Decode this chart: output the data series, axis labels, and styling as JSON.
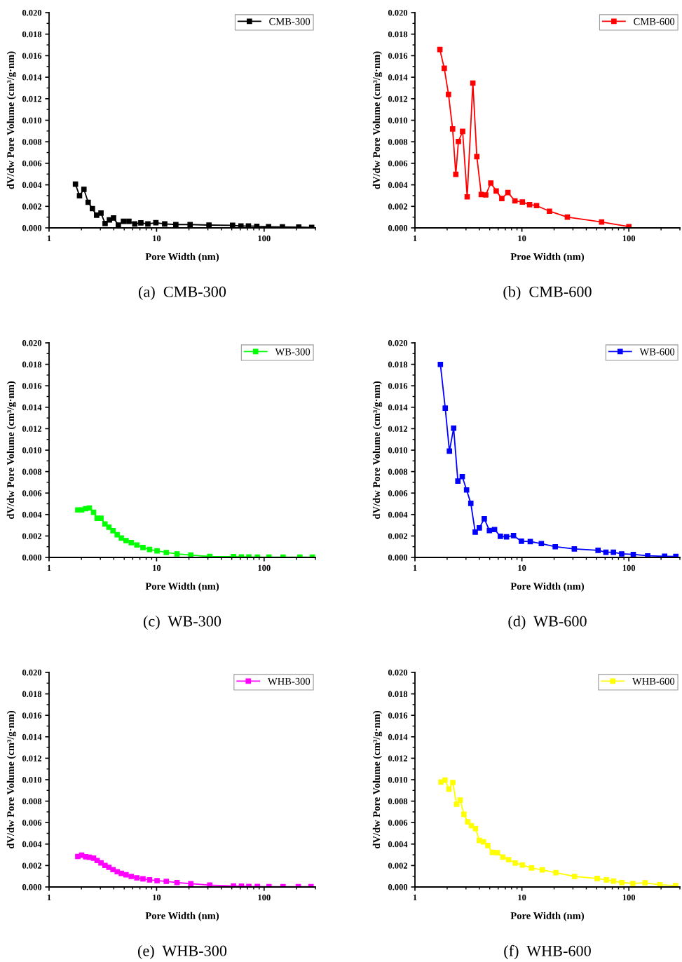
{
  "chart_data": [
    {
      "type": "line",
      "xlabel": "Pore Width (nm)",
      "ylabel": "dV/dw Pore Volume (cm³/g·nm)",
      "log": "x",
      "xlim": [
        1,
        300
      ],
      "xticks": [
        1,
        10,
        100
      ],
      "ylim": [
        0,
        0.02
      ],
      "yticks": [
        {
          "value": 0,
          "label": "0.000"
        },
        {
          "value": 0.002,
          "label": "0.002"
        },
        {
          "value": 0.004,
          "label": "0.004"
        },
        {
          "value": 0.006,
          "label": "0.006"
        },
        {
          "value": 0.008,
          "label": "0.008"
        },
        {
          "value": 0.01,
          "label": "0.010"
        },
        {
          "value": 0.012,
          "label": "0.012"
        },
        {
          "value": 0.014,
          "label": "0.014"
        },
        {
          "value": 0.016,
          "label": "0.016"
        },
        {
          "value": 0.018,
          "label": "0.018"
        },
        {
          "value": 0.02,
          "label": "0.020"
        }
      ],
      "grid": false,
      "legend": "top right",
      "marker": "square",
      "line_style": "solid",
      "annotations": [
        "(a)  CMB-300"
      ],
      "series": [
        {
          "name": "CMB-300",
          "color": "#000000",
          "x": [
            1.76,
            1.92,
            2.11,
            2.31,
            2.53,
            2.77,
            3.04,
            3.32,
            3.64,
            3.98,
            4.41,
            4.92,
            5.53,
            6.27,
            7.14,
            8.3,
            9.85,
            11.9,
            15.1,
            20.5,
            30.7,
            50.9,
            60.9,
            71.5,
            85.5,
            110,
            148,
            210,
            277
          ],
          "values": [
            0.00406,
            0.00299,
            0.00358,
            0.00238,
            0.00179,
            0.00118,
            0.00138,
            0.00041,
            0.00074,
            0.00092,
            0.00026,
            0.00061,
            0.00061,
            0.00037,
            0.00046,
            0.00037,
            0.00048,
            0.00037,
            0.00031,
            0.00031,
            0.00026,
            0.00024,
            0.00017,
            0.00017,
            0.00015,
            0.00011,
            9e-05,
            7e-05,
            4e-05
          ]
        }
      ]
    },
    {
      "type": "line",
      "xlabel": "Proe Width (nm)",
      "ylabel": "dV/dw Pore Volume (cm³/g·nm)",
      "log": "x",
      "xlim": [
        1,
        300
      ],
      "xticks": [
        1,
        10,
        100
      ],
      "ylim": [
        0,
        0.02
      ],
      "yticks": [
        {
          "value": 0,
          "label": "0.000"
        },
        {
          "value": 0.002,
          "label": "0.002"
        },
        {
          "value": 0.004,
          "label": "0.004"
        },
        {
          "value": 0.006,
          "label": "0.006"
        },
        {
          "value": 0.008,
          "label": "0.008"
        },
        {
          "value": 0.01,
          "label": "0.010"
        },
        {
          "value": 0.012,
          "label": "0.012"
        },
        {
          "value": 0.014,
          "label": "0.014"
        },
        {
          "value": 0.016,
          "label": "0.016"
        },
        {
          "value": 0.018,
          "label": "0.018"
        },
        {
          "value": 0.02,
          "label": "0.020"
        }
      ],
      "grid": false,
      "legend": "top right",
      "marker": "square",
      "line_style": "solid",
      "annotations": [
        "(b)  CMB-600"
      ],
      "series": [
        {
          "name": "CMB-600",
          "color": "#ff0000",
          "x": [
            1.71,
            1.88,
            2.06,
            2.25,
            2.41,
            2.55,
            2.79,
            3.08,
            3.48,
            3.79,
            4.17,
            4.59,
            5.12,
            5.75,
            6.49,
            7.4,
            8.61,
            10.1,
            11.8,
            13.7,
            18.1,
            26.6,
            55.6,
            100
          ],
          "values": [
            0.01657,
            0.01483,
            0.0124,
            0.00919,
            0.00498,
            0.00803,
            0.00897,
            0.00288,
            0.01345,
            0.00662,
            0.0031,
            0.00306,
            0.00417,
            0.00343,
            0.00273,
            0.00328,
            0.00251,
            0.0024,
            0.00216,
            0.00207,
            0.00155,
            0.001,
            0.00055,
            0.00011
          ]
        }
      ]
    },
    {
      "type": "line",
      "xlabel": "Pore Width (nm)",
      "ylabel": "dV/dw Pore Volume (cm³/g·nm)",
      "log": "x",
      "xlim": [
        1,
        300
      ],
      "xticks": [
        1,
        10,
        100
      ],
      "ylim": [
        0,
        0.02
      ],
      "yticks": [
        {
          "value": 0,
          "label": "0.000"
        },
        {
          "value": 0.002,
          "label": "0.002"
        },
        {
          "value": 0.004,
          "label": "0.004"
        },
        {
          "value": 0.006,
          "label": "0.006"
        },
        {
          "value": 0.008,
          "label": "0.008"
        },
        {
          "value": 0.01,
          "label": "0.010"
        },
        {
          "value": 0.012,
          "label": "0.012"
        },
        {
          "value": 0.014,
          "label": "0.014"
        },
        {
          "value": 0.016,
          "label": "0.016"
        },
        {
          "value": 0.018,
          "label": "0.018"
        },
        {
          "value": 0.02,
          "label": "0.020"
        }
      ],
      "grid": false,
      "legend": "top right",
      "marker": "square",
      "line_style": "solid",
      "annotations": [
        "(c)  WB-300"
      ],
      "series": [
        {
          "name": "WB-300",
          "color": "#00ff00",
          "x": [
            1.85,
            2.01,
            2.19,
            2.37,
            2.59,
            2.8,
            3.04,
            3.31,
            3.6,
            3.93,
            4.3,
            4.7,
            5.2,
            5.81,
            6.55,
            7.47,
            8.6,
            10.1,
            12.3,
            15.5,
            20.8,
            31.2,
            51.9,
            61.6,
            72.1,
            86.5,
            111,
            150,
            215,
            281
          ],
          "values": [
            0.00443,
            0.00443,
            0.00454,
            0.00461,
            0.00421,
            0.00365,
            0.00365,
            0.00312,
            0.00282,
            0.00249,
            0.00212,
            0.00181,
            0.00157,
            0.00138,
            0.00116,
            0.00092,
            0.00074,
            0.00061,
            0.00046,
            0.00033,
            0.00022,
            9e-05,
            7e-05,
            4e-05,
            4e-05,
            2e-05,
            2e-05,
            2e-05,
            2e-05,
            2e-05
          ]
        }
      ]
    },
    {
      "type": "line",
      "xlabel": "Pore Width (nm)",
      "ylabel": "dV/dw Pore Volume (cm³/g·nm)",
      "log": "x",
      "xlim": [
        1,
        300
      ],
      "xticks": [
        1,
        10,
        100
      ],
      "ylim": [
        0,
        0.02
      ],
      "yticks": [
        {
          "value": 0,
          "label": "0.000"
        },
        {
          "value": 0.002,
          "label": "0.002"
        },
        {
          "value": 0.004,
          "label": "0.004"
        },
        {
          "value": 0.006,
          "label": "0.006"
        },
        {
          "value": 0.008,
          "label": "0.008"
        },
        {
          "value": 0.01,
          "label": "0.010"
        },
        {
          "value": 0.012,
          "label": "0.012"
        },
        {
          "value": 0.014,
          "label": "0.014"
        },
        {
          "value": 0.016,
          "label": "0.016"
        },
        {
          "value": 0.018,
          "label": "0.018"
        },
        {
          "value": 0.02,
          "label": "0.020"
        }
      ],
      "grid": false,
      "legend": "top right",
      "marker": "square",
      "line_style": "solid",
      "annotations": [
        "(d)  WB-600"
      ],
      "series": [
        {
          "name": "WB-600",
          "color": "#0000ff",
          "x": [
            1.73,
            1.92,
            2.1,
            2.3,
            2.52,
            2.77,
            3.04,
            3.33,
            3.66,
            4.0,
            4.45,
            4.97,
            5.55,
            6.29,
            7.18,
            8.35,
            9.9,
            11.98,
            15.2,
            20.5,
            30.9,
            51.5,
            61.0,
            71.7,
            85.7,
            110,
            150,
            216,
            275
          ],
          "values": [
            0.01799,
            0.01391,
            0.00991,
            0.01205,
            0.00712,
            0.00753,
            0.00629,
            0.00504,
            0.00236,
            0.00275,
            0.0036,
            0.00251,
            0.0026,
            0.00197,
            0.00192,
            0.00203,
            0.00151,
            0.00148,
            0.00129,
            0.001,
            0.00079,
            0.00066,
            0.00048,
            0.00048,
            0.00033,
            0.00028,
            0.00015,
            0.00011,
            9e-05
          ]
        }
      ]
    },
    {
      "type": "line",
      "xlabel": "Pore Width (nm)",
      "ylabel": "dV/dw Pore Volume (cm³/g·nm)",
      "log": "x",
      "xlim": [
        1,
        300
      ],
      "xticks": [
        1,
        10,
        100
      ],
      "ylim": [
        0,
        0.02
      ],
      "yticks": [
        {
          "value": 0,
          "label": "0.000"
        },
        {
          "value": 0.002,
          "label": "0.002"
        },
        {
          "value": 0.004,
          "label": "0.004"
        },
        {
          "value": 0.006,
          "label": "0.006"
        },
        {
          "value": 0.008,
          "label": "0.008"
        },
        {
          "value": 0.01,
          "label": "0.010"
        },
        {
          "value": 0.012,
          "label": "0.012"
        },
        {
          "value": 0.014,
          "label": "0.014"
        },
        {
          "value": 0.016,
          "label": "0.016"
        },
        {
          "value": 0.018,
          "label": "0.018"
        },
        {
          "value": 0.02,
          "label": "0.020"
        }
      ],
      "grid": false,
      "legend": "top right",
      "marker": "square",
      "line_style": "solid",
      "annotations": [
        "(e)  WHB-300"
      ],
      "series": [
        {
          "name": "WHB-300",
          "color": "#ff00ff",
          "x": [
            1.85,
            2.01,
            2.19,
            2.37,
            2.59,
            2.8,
            3.04,
            3.31,
            3.6,
            3.93,
            4.3,
            4.7,
            5.2,
            5.81,
            6.55,
            7.47,
            8.6,
            10.1,
            12.3,
            15.5,
            20.8,
            31.2,
            51.9,
            61.6,
            72.1,
            86.5,
            111,
            150,
            208,
            273
          ],
          "values": [
            0.00284,
            0.00297,
            0.00282,
            0.00277,
            0.00269,
            0.00247,
            0.00225,
            0.00201,
            0.00183,
            0.00162,
            0.00142,
            0.00127,
            0.00114,
            0.00098,
            0.00085,
            0.00076,
            0.00066,
            0.00059,
            0.00052,
            0.00041,
            0.00031,
            0.00017,
            9e-05,
            7e-05,
            4e-05,
            4e-05,
            2e-05,
            2e-05,
            2e-05,
            2e-05
          ]
        }
      ]
    },
    {
      "type": "line",
      "xlabel": "Pore Width (nm)",
      "ylabel": "dV/dw Pore Volume (cm³/g·nm)",
      "log": "x",
      "xlim": [
        1,
        300
      ],
      "xticks": [
        1,
        10,
        100
      ],
      "ylim": [
        0,
        0.02
      ],
      "yticks": [
        {
          "value": 0,
          "label": "0.000"
        },
        {
          "value": 0.002,
          "label": "0.002"
        },
        {
          "value": 0.004,
          "label": "0.004"
        },
        {
          "value": 0.006,
          "label": "0.006"
        },
        {
          "value": 0.008,
          "label": "0.008"
        },
        {
          "value": 0.01,
          "label": "0.010"
        },
        {
          "value": 0.012,
          "label": "0.012"
        },
        {
          "value": 0.014,
          "label": "0.014"
        },
        {
          "value": 0.016,
          "label": "0.016"
        },
        {
          "value": 0.018,
          "label": "0.018"
        },
        {
          "value": 0.02,
          "label": "0.020"
        }
      ],
      "grid": false,
      "legend": "top right",
      "marker": "square",
      "line_style": "solid",
      "annotations": [
        "(f)  WHB-600"
      ],
      "series": [
        {
          "name": "WHB-600",
          "color": "#ffff00",
          "x": [
            1.75,
            1.91,
            2.08,
            2.26,
            2.45,
            2.65,
            2.87,
            3.11,
            3.37,
            3.68,
            4.0,
            4.37,
            4.8,
            5.3,
            5.9,
            6.62,
            7.51,
            8.66,
            10.1,
            12.3,
            15.5,
            20.8,
            31.0,
            50.6,
            61.7,
            71.8,
            86.0,
            109,
            142,
            195,
            273
          ],
          "values": [
            0.00978,
            0.00996,
            0.00913,
            0.00974,
            0.00771,
            0.0081,
            0.00677,
            0.00607,
            0.00572,
            0.00544,
            0.00434,
            0.00421,
            0.00386,
            0.00323,
            0.00319,
            0.00279,
            0.00255,
            0.00223,
            0.00205,
            0.00177,
            0.00159,
            0.00133,
            0.00098,
            0.00079,
            0.00066,
            0.00055,
            0.00041,
            0.00033,
            0.00039,
            0.0002,
            0.00013
          ]
        }
      ]
    }
  ]
}
